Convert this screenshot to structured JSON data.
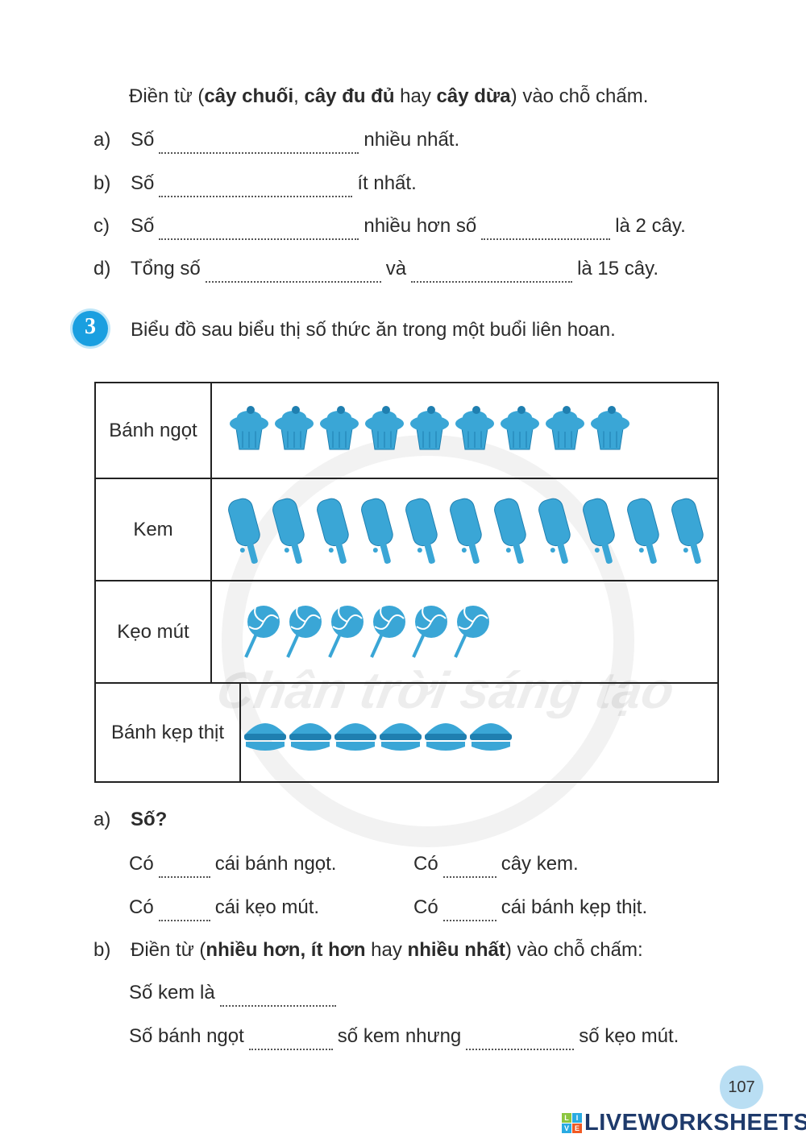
{
  "exercise2": {
    "instruction_pre": "Điền từ (",
    "w1": "cây chuối",
    "sep1": ", ",
    "w2": "cây đu đủ",
    "sep2": " hay ",
    "w3": "cây dừa",
    "instruction_post": ") vào chỗ chấm.",
    "items": [
      {
        "label": "a)",
        "p1": "Số",
        "p2": "nhiều nhất."
      },
      {
        "label": "b)",
        "p1": "Số",
        "p2": "ít nhất."
      },
      {
        "label": "c)",
        "p1": "Số",
        "p2": "nhiều hơn số",
        "p3": "là 2 cây."
      },
      {
        "label": "d)",
        "p1": "Tổng số",
        "p2": "và",
        "p3": "là 15 cây."
      }
    ]
  },
  "exercise3": {
    "number": "3",
    "title": "Biểu đồ sau biểu thị số thức ăn trong một buổi liên hoan.",
    "icon_color": "#3aa6d6",
    "rows": [
      {
        "label": "Bánh ngọt",
        "icon": "cupcake-icon",
        "count": 9
      },
      {
        "label": "Kem",
        "icon": "popsicle-icon",
        "count": 11
      },
      {
        "label": "Kẹo mút",
        "icon": "lollipop-icon",
        "count": 6
      },
      {
        "label": "Bánh kẹp thịt",
        "icon": "burger-icon",
        "count": 6
      }
    ],
    "a_label": "a)",
    "a_title": "Số?",
    "a_items": [
      {
        "p1": "Có",
        "p2": "cái bánh ngọt."
      },
      {
        "p1": "Có",
        "p2": "cây kem."
      },
      {
        "p1": "Có",
        "p2": "cái kẹo mút."
      },
      {
        "p1": "Có",
        "p2": "cái bánh kẹp thịt."
      }
    ],
    "b_label": "b)",
    "b_pre": "Điền từ (",
    "b_w1": "nhiều hơn, ít hơn",
    "b_mid": " hay ",
    "b_w2": "nhiều nhất",
    "b_post": ") vào chỗ chấm:",
    "b_line1": "Số kem là",
    "b_line2_p1": "Số bánh ngọt",
    "b_line2_p2": "số kem nhưng",
    "b_line2_p3": "số kẹo mút."
  },
  "watermark": "Chân trời sáng tạo",
  "page_number": "107",
  "brand": {
    "logo_letters": [
      "L",
      "I",
      "V",
      "E"
    ],
    "name": "LIVEWORKSHEETS"
  }
}
